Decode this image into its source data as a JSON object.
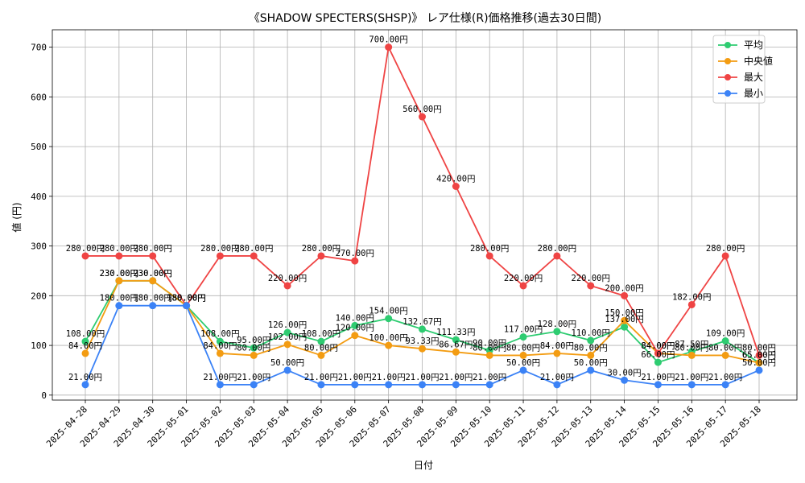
{
  "chart_data": {
    "type": "line",
    "title": "《SHADOW SPECTERS(SHSP)》 レア仕様(R)価格推移(過去30日間)",
    "xlabel": "日付",
    "ylabel": "値 (円)",
    "ylim": [
      -10,
      735
    ],
    "yticks": [
      0,
      100,
      200,
      300,
      400,
      500,
      600,
      700
    ],
    "grid": true,
    "legend_position": "top-right",
    "value_suffix": "円",
    "categories": [
      "2025-04-28",
      "2025-04-29",
      "2025-04-30",
      "2025-05-01",
      "2025-05-02",
      "2025-05-03",
      "2025-05-04",
      "2025-05-05",
      "2025-05-06",
      "2025-05-07",
      "2025-05-08",
      "2025-05-09",
      "2025-05-10",
      "2025-05-11",
      "2025-05-12",
      "2025-05-13",
      "2025-05-14",
      "2025-05-15",
      "2025-05-16",
      "2025-05-17",
      "2025-05-18"
    ],
    "series": [
      {
        "name": "平均",
        "color": "#2ecc71",
        "values": [
          108.0,
          230.0,
          230.0,
          180.0,
          108.0,
          95.0,
          126.0,
          108.0,
          140.0,
          154.0,
          132.67,
          111.33,
          90.0,
          117.0,
          128.0,
          110.0,
          137.0,
          66.0,
          87.5,
          109.0,
          65.0
        ]
      },
      {
        "name": "中央値",
        "color": "#f39c12",
        "values": [
          84.0,
          230.0,
          230.0,
          180.0,
          84.0,
          80.0,
          102.0,
          80.0,
          120.0,
          100.0,
          93.33,
          86.67,
          80.0,
          80.0,
          84.0,
          80.0,
          150.0,
          84.0,
          80.0,
          80.0,
          65.0
        ]
      },
      {
        "name": "最大",
        "color": "#ef4444",
        "values": [
          280.0,
          280.0,
          280.0,
          180.0,
          280.0,
          280.0,
          220.0,
          280.0,
          270.0,
          700.0,
          560.0,
          420.0,
          280.0,
          220.0,
          280.0,
          220.0,
          200.0,
          84.0,
          182.0,
          280.0,
          80.0
        ]
      },
      {
        "name": "最小",
        "color": "#3b82f6",
        "values": [
          21.0,
          180.0,
          180.0,
          180.0,
          21.0,
          21.0,
          50.0,
          21.0,
          21.0,
          21.0,
          21.0,
          21.0,
          21.0,
          50.0,
          21.0,
          50.0,
          30.0,
          21.0,
          21.0,
          21.0,
          50.0
        ]
      }
    ]
  }
}
